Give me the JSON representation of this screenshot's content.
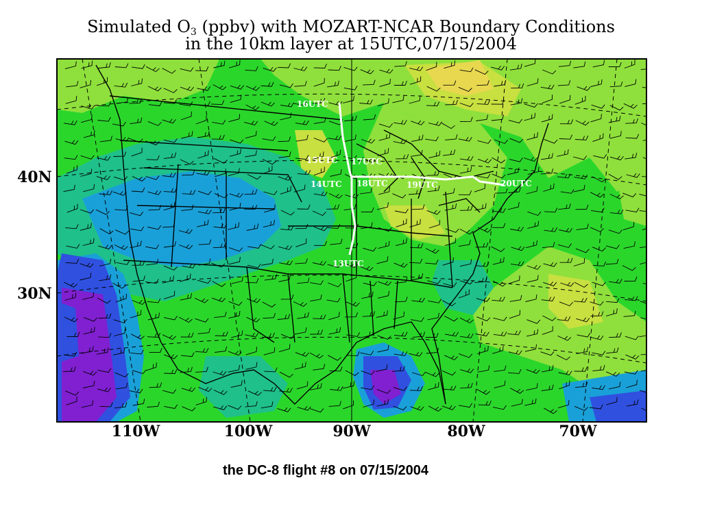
{
  "title": {
    "line1_prefix": "Simulated O",
    "line1_sub": "3",
    "line1_suffix": " (ppbv) with MOZART-NCAR Boundary Conditions",
    "line2": "in the 10km layer at 15UTC,07/15/2004"
  },
  "lat_labels": [
    "40N",
    "30N"
  ],
  "lon_labels": [
    "110W",
    "100W",
    "90W",
    "80W",
    "70W"
  ],
  "flight_labels": [
    "16UTC",
    "15UTC",
    "17UTC",
    "14UTC",
    "18UTC",
    "19UTC",
    "20UTC",
    "13UTC"
  ],
  "caption": "the DC-8 flight #8 on 07/15/2004",
  "colors": {
    "green": "#2bd62b",
    "light_green": "#8fe03c",
    "yellow_green": "#c8e040",
    "yellow": "#e8d850",
    "teal": "#1fc08a",
    "cyan_blue": "#1aa0d8",
    "blue": "#3050e0",
    "purple": "#8020d0",
    "flight_track": "#ffffff"
  }
}
